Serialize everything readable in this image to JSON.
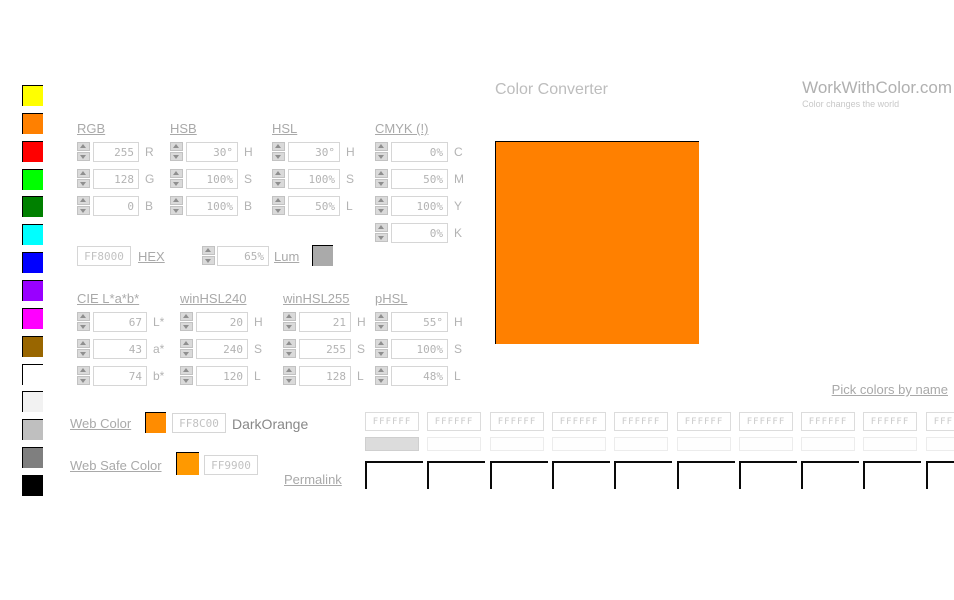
{
  "header": {
    "title": "Color Converter",
    "logo": "WorkWithColor.com",
    "tagline": "Color changes the world"
  },
  "palette": [
    {
      "name": "yellow",
      "hex": "#FFFF00"
    },
    {
      "name": "orange",
      "hex": "#FF8000"
    },
    {
      "name": "red",
      "hex": "#FF0000"
    },
    {
      "name": "lime-green",
      "hex": "#00FF00"
    },
    {
      "name": "green",
      "hex": "#008000"
    },
    {
      "name": "cyan",
      "hex": "#00FFFF"
    },
    {
      "name": "blue",
      "hex": "#0000FF"
    },
    {
      "name": "violet",
      "hex": "#9900FF"
    },
    {
      "name": "magenta",
      "hex": "#FF00FF"
    },
    {
      "name": "dark-yellow",
      "hex": "#996600"
    },
    {
      "name": "white",
      "hex": "#FFFFFF"
    },
    {
      "name": "off-white",
      "hex": "#F2F2F2"
    },
    {
      "name": "silver",
      "hex": "#BFBFBF"
    },
    {
      "name": "gray",
      "hex": "#7F7F7F"
    },
    {
      "name": "black",
      "hex": "#000000"
    }
  ],
  "sections": [
    {
      "id": "rgb",
      "label": "RGB",
      "rows": [
        {
          "value": "255",
          "unit": "R"
        },
        {
          "value": "128",
          "unit": "G"
        },
        {
          "value": "0",
          "unit": "B"
        }
      ]
    },
    {
      "id": "hsb",
      "label": "HSB",
      "rows": [
        {
          "value": "30°",
          "unit": "H"
        },
        {
          "value": "100%",
          "unit": "S"
        },
        {
          "value": "100%",
          "unit": "B"
        }
      ]
    },
    {
      "id": "hsl",
      "label": "HSL",
      "rows": [
        {
          "value": "30°",
          "unit": "H"
        },
        {
          "value": "100%",
          "unit": "S"
        },
        {
          "value": "50%",
          "unit": "L"
        }
      ]
    },
    {
      "id": "cmyk",
      "label": "CMYK (!)",
      "rows": [
        {
          "value": "0%",
          "unit": "C"
        },
        {
          "value": "50%",
          "unit": "M"
        },
        {
          "value": "100%",
          "unit": "Y"
        },
        {
          "value": "0%",
          "unit": "K"
        }
      ]
    },
    {
      "id": "lab",
      "label": "CIE L*a*b*",
      "rows": [
        {
          "value": "67",
          "unit": "L*"
        },
        {
          "value": "43",
          "unit": "a*"
        },
        {
          "value": "74",
          "unit": "b*"
        }
      ]
    },
    {
      "id": "winhsl240",
      "label": "winHSL240",
      "rows": [
        {
          "value": "20",
          "unit": "H"
        },
        {
          "value": "240",
          "unit": "S"
        },
        {
          "value": "120",
          "unit": "L"
        }
      ]
    },
    {
      "id": "winhsl255",
      "label": "winHSL255",
      "rows": [
        {
          "value": "21",
          "unit": "H"
        },
        {
          "value": "255",
          "unit": "S"
        },
        {
          "value": "128",
          "unit": "L"
        }
      ]
    },
    {
      "id": "phsl",
      "label": "pHSL",
      "rows": [
        {
          "value": "55°",
          "unit": "H"
        },
        {
          "value": "100%",
          "unit": "S"
        },
        {
          "value": "48%",
          "unit": "L"
        }
      ]
    }
  ],
  "hex": {
    "value": "FF8000",
    "label": "HEX"
  },
  "lum": {
    "value": "65%",
    "label": "Lum",
    "swatch": "#AAAAAA"
  },
  "web_color": {
    "label": "Web Color",
    "hex": "FF8C00",
    "name": "DarkOrange",
    "swatch": "#FF8C00"
  },
  "web_safe": {
    "label": "Web Safe Color",
    "hex": "FF9900",
    "swatch": "#FF9900"
  },
  "links": {
    "permalink": "Permalink",
    "pick_colors": "Pick colors by name"
  },
  "preview": {
    "color": "#FF8000"
  },
  "compare": {
    "hex_value": "FFFFFF",
    "columns": 10,
    "selected_index": 0
  }
}
